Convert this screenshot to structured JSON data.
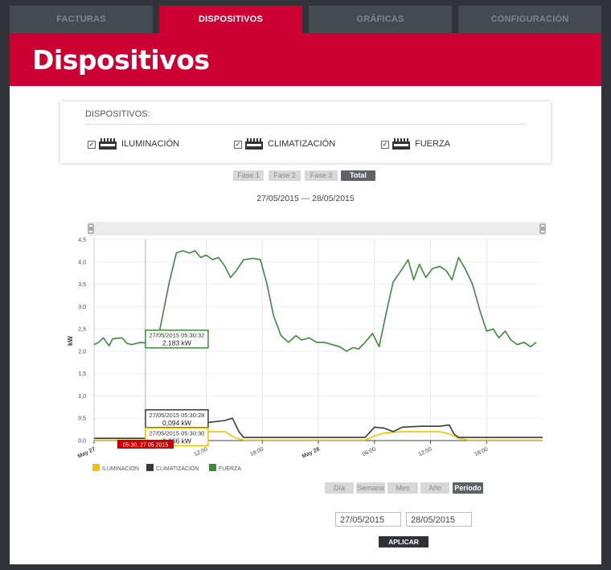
{
  "tabs": [
    {
      "label": "FACTURAS",
      "active": false
    },
    {
      "label": "DISPOSITIVOS",
      "active": true
    },
    {
      "label": "GRÁFICAS",
      "active": false
    },
    {
      "label": "CONFIGURACIÓN",
      "active": false
    }
  ],
  "page_title": "Dispositivos",
  "devices": {
    "title": "DISPOSITIVOS:",
    "items": [
      {
        "label": "ILUMINACIÓN",
        "checked": true
      },
      {
        "label": "CLIMATIZACIÓN",
        "checked": true
      },
      {
        "label": "FUERZA",
        "checked": true
      }
    ]
  },
  "phases": [
    {
      "label": "Fase 1",
      "active": false
    },
    {
      "label": "Fase 2",
      "active": false
    },
    {
      "label": "Fase 3",
      "active": false
    },
    {
      "label": "Total",
      "active": true
    }
  ],
  "date_range": "27/05/2015 --- 28/05/2015",
  "chart_data": {
    "type": "line",
    "ylabel": "kW",
    "ylim": [
      0,
      4.5
    ],
    "y_ticks": [
      "0,0",
      "0,5",
      "1,0",
      "1,5",
      "2,0",
      "2,5",
      "3,0",
      "3,5",
      "4,0",
      "4,5"
    ],
    "x_ticks": [
      "May 27",
      "12:00",
      "18:00",
      "May 28",
      "06:00",
      "12:00",
      "18:00"
    ],
    "x_range_hours": [
      0,
      48
    ],
    "grid": true,
    "legend_position": "bottom-left",
    "series": [
      {
        "name": "ILUMINACIÓN",
        "color": "#f2c200",
        "points": [
          [
            0,
            0.01
          ],
          [
            5.5,
            0.01
          ],
          [
            5.5,
            0.066
          ],
          [
            9,
            0.066
          ],
          [
            10,
            0.15
          ],
          [
            12,
            0.2
          ],
          [
            14,
            0.2
          ],
          [
            15,
            0.07
          ],
          [
            16,
            0.01
          ],
          [
            29,
            0.01
          ],
          [
            30,
            0.1
          ],
          [
            31,
            0.17
          ],
          [
            33,
            0.2
          ],
          [
            37,
            0.2
          ],
          [
            38,
            0.15
          ],
          [
            39,
            0.05
          ],
          [
            40,
            0.01
          ],
          [
            48,
            0.01
          ]
        ]
      },
      {
        "name": "CLIMATIZACIÓN",
        "color": "#3a3a3a",
        "points": [
          [
            0,
            0.05
          ],
          [
            5.5,
            0.05
          ],
          [
            5.5,
            0.094
          ],
          [
            6,
            0.3
          ],
          [
            8,
            0.32
          ],
          [
            10,
            0.38
          ],
          [
            12,
            0.4
          ],
          [
            14,
            0.45
          ],
          [
            14.8,
            0.5
          ],
          [
            15.5,
            0.2
          ],
          [
            16,
            0.07
          ],
          [
            29,
            0.07
          ],
          [
            30,
            0.3
          ],
          [
            31,
            0.28
          ],
          [
            32,
            0.2
          ],
          [
            33,
            0.3
          ],
          [
            35,
            0.32
          ],
          [
            37,
            0.32
          ],
          [
            38,
            0.35
          ],
          [
            38.5,
            0.15
          ],
          [
            39,
            0.07
          ],
          [
            48,
            0.07
          ]
        ]
      },
      {
        "name": "FUERZA",
        "color": "#3c8a3c",
        "points": [
          [
            0,
            2.15
          ],
          [
            0.5,
            2.2
          ],
          [
            1,
            2.3
          ],
          [
            1.6,
            2.12
          ],
          [
            2,
            2.28
          ],
          [
            3,
            2.3
          ],
          [
            3.5,
            2.18
          ],
          [
            4,
            2.15
          ],
          [
            5,
            2.2
          ],
          [
            5.5,
            2.183
          ],
          [
            6,
            2.2
          ],
          [
            7,
            2.45
          ],
          [
            8,
            3.5
          ],
          [
            8.8,
            4.2
          ],
          [
            9.5,
            4.25
          ],
          [
            10.2,
            4.2
          ],
          [
            10.8,
            4.25
          ],
          [
            11.4,
            4.1
          ],
          [
            12,
            4.15
          ],
          [
            12.7,
            4.05
          ],
          [
            13.3,
            4.1
          ],
          [
            14,
            3.9
          ],
          [
            14.6,
            3.65
          ],
          [
            15.2,
            3.8
          ],
          [
            16,
            4.05
          ],
          [
            17,
            4.08
          ],
          [
            17.8,
            4.05
          ],
          [
            18.5,
            3.5
          ],
          [
            19.2,
            2.8
          ],
          [
            20,
            2.35
          ],
          [
            20.8,
            2.2
          ],
          [
            21.6,
            2.35
          ],
          [
            22.2,
            2.25
          ],
          [
            23,
            2.3
          ],
          [
            23.8,
            2.2
          ],
          [
            24.6,
            2.2
          ],
          [
            25.5,
            2.15
          ],
          [
            26.3,
            2.1
          ],
          [
            27,
            2.0
          ],
          [
            27.7,
            2.08
          ],
          [
            28.3,
            2.05
          ],
          [
            29,
            2.2
          ],
          [
            29.8,
            2.4
          ],
          [
            30.5,
            2.1
          ],
          [
            31.2,
            2.8
          ],
          [
            32,
            3.55
          ],
          [
            33,
            3.85
          ],
          [
            33.6,
            4.05
          ],
          [
            34.2,
            3.6
          ],
          [
            34.8,
            3.95
          ],
          [
            35.5,
            3.65
          ],
          [
            36.2,
            3.85
          ],
          [
            37,
            3.9
          ],
          [
            37.7,
            3.8
          ],
          [
            38.3,
            3.6
          ],
          [
            39,
            4.1
          ],
          [
            39.7,
            3.85
          ],
          [
            40.5,
            3.5
          ],
          [
            41.3,
            2.9
          ],
          [
            42,
            2.45
          ],
          [
            42.7,
            2.5
          ],
          [
            43.3,
            2.3
          ],
          [
            44,
            2.45
          ],
          [
            44.6,
            2.25
          ],
          [
            45.3,
            2.15
          ],
          [
            46,
            2.2
          ],
          [
            46.7,
            2.1
          ],
          [
            47.3,
            2.2
          ]
        ]
      }
    ],
    "tooltips": [
      {
        "time": "27/05/2015 05:30:32",
        "value": "2,183 kW",
        "series": "FUERZA"
      },
      {
        "time": "27/05/2015 05:30:28",
        "value": "0,094 kW",
        "series": "CLIMATIZACIÓN"
      },
      {
        "time": "27/05/2015 05:30:30",
        "value": "0,066 kW",
        "series": "ILUMINACIÓN"
      }
    ],
    "crosshair_label": "05:30, 27 05 2015",
    "colors": {
      "fuerza": "#3c8a3c",
      "climatizacion": "#3a3a3a",
      "iluminacion": "#f2c200",
      "crosshair": "#cc0000"
    }
  },
  "periods": [
    {
      "label": "Día",
      "active": false
    },
    {
      "label": "Semana",
      "active": false
    },
    {
      "label": "Mes",
      "active": false
    },
    {
      "label": "Año",
      "active": false
    },
    {
      "label": "Período",
      "active": true
    }
  ],
  "date_from": "27/05/2015",
  "date_to": "28/05/2015",
  "apply_label": "APLICAR"
}
